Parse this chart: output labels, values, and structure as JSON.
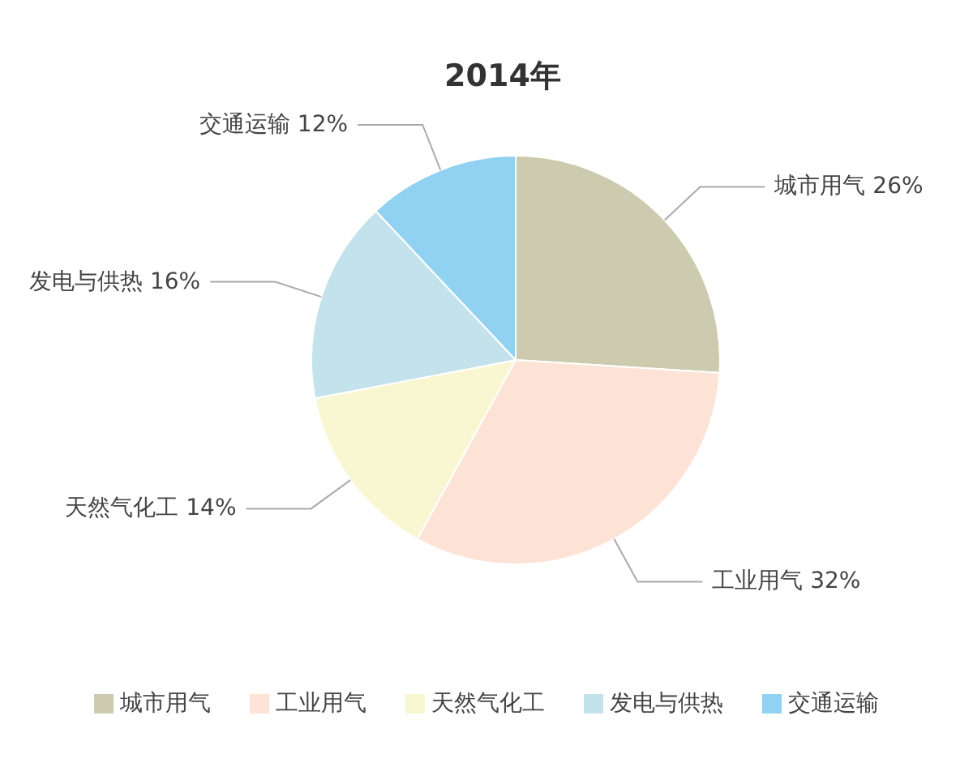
{
  "chart_data": {
    "type": "pie",
    "title": "2014年",
    "categories": [
      "城市用气",
      "工业用气",
      "天然气化工",
      "发电与供热",
      "交通运输"
    ],
    "values": [
      26,
      32,
      14,
      16,
      12
    ],
    "value_labels": [
      "26%",
      "32%",
      "14%",
      "16%",
      "12%"
    ],
    "colors": [
      "#cccbb0",
      "#fde3d6",
      "#f8f7d2",
      "#c3e2ec",
      "#91d1f2"
    ],
    "legend": "bottom"
  }
}
